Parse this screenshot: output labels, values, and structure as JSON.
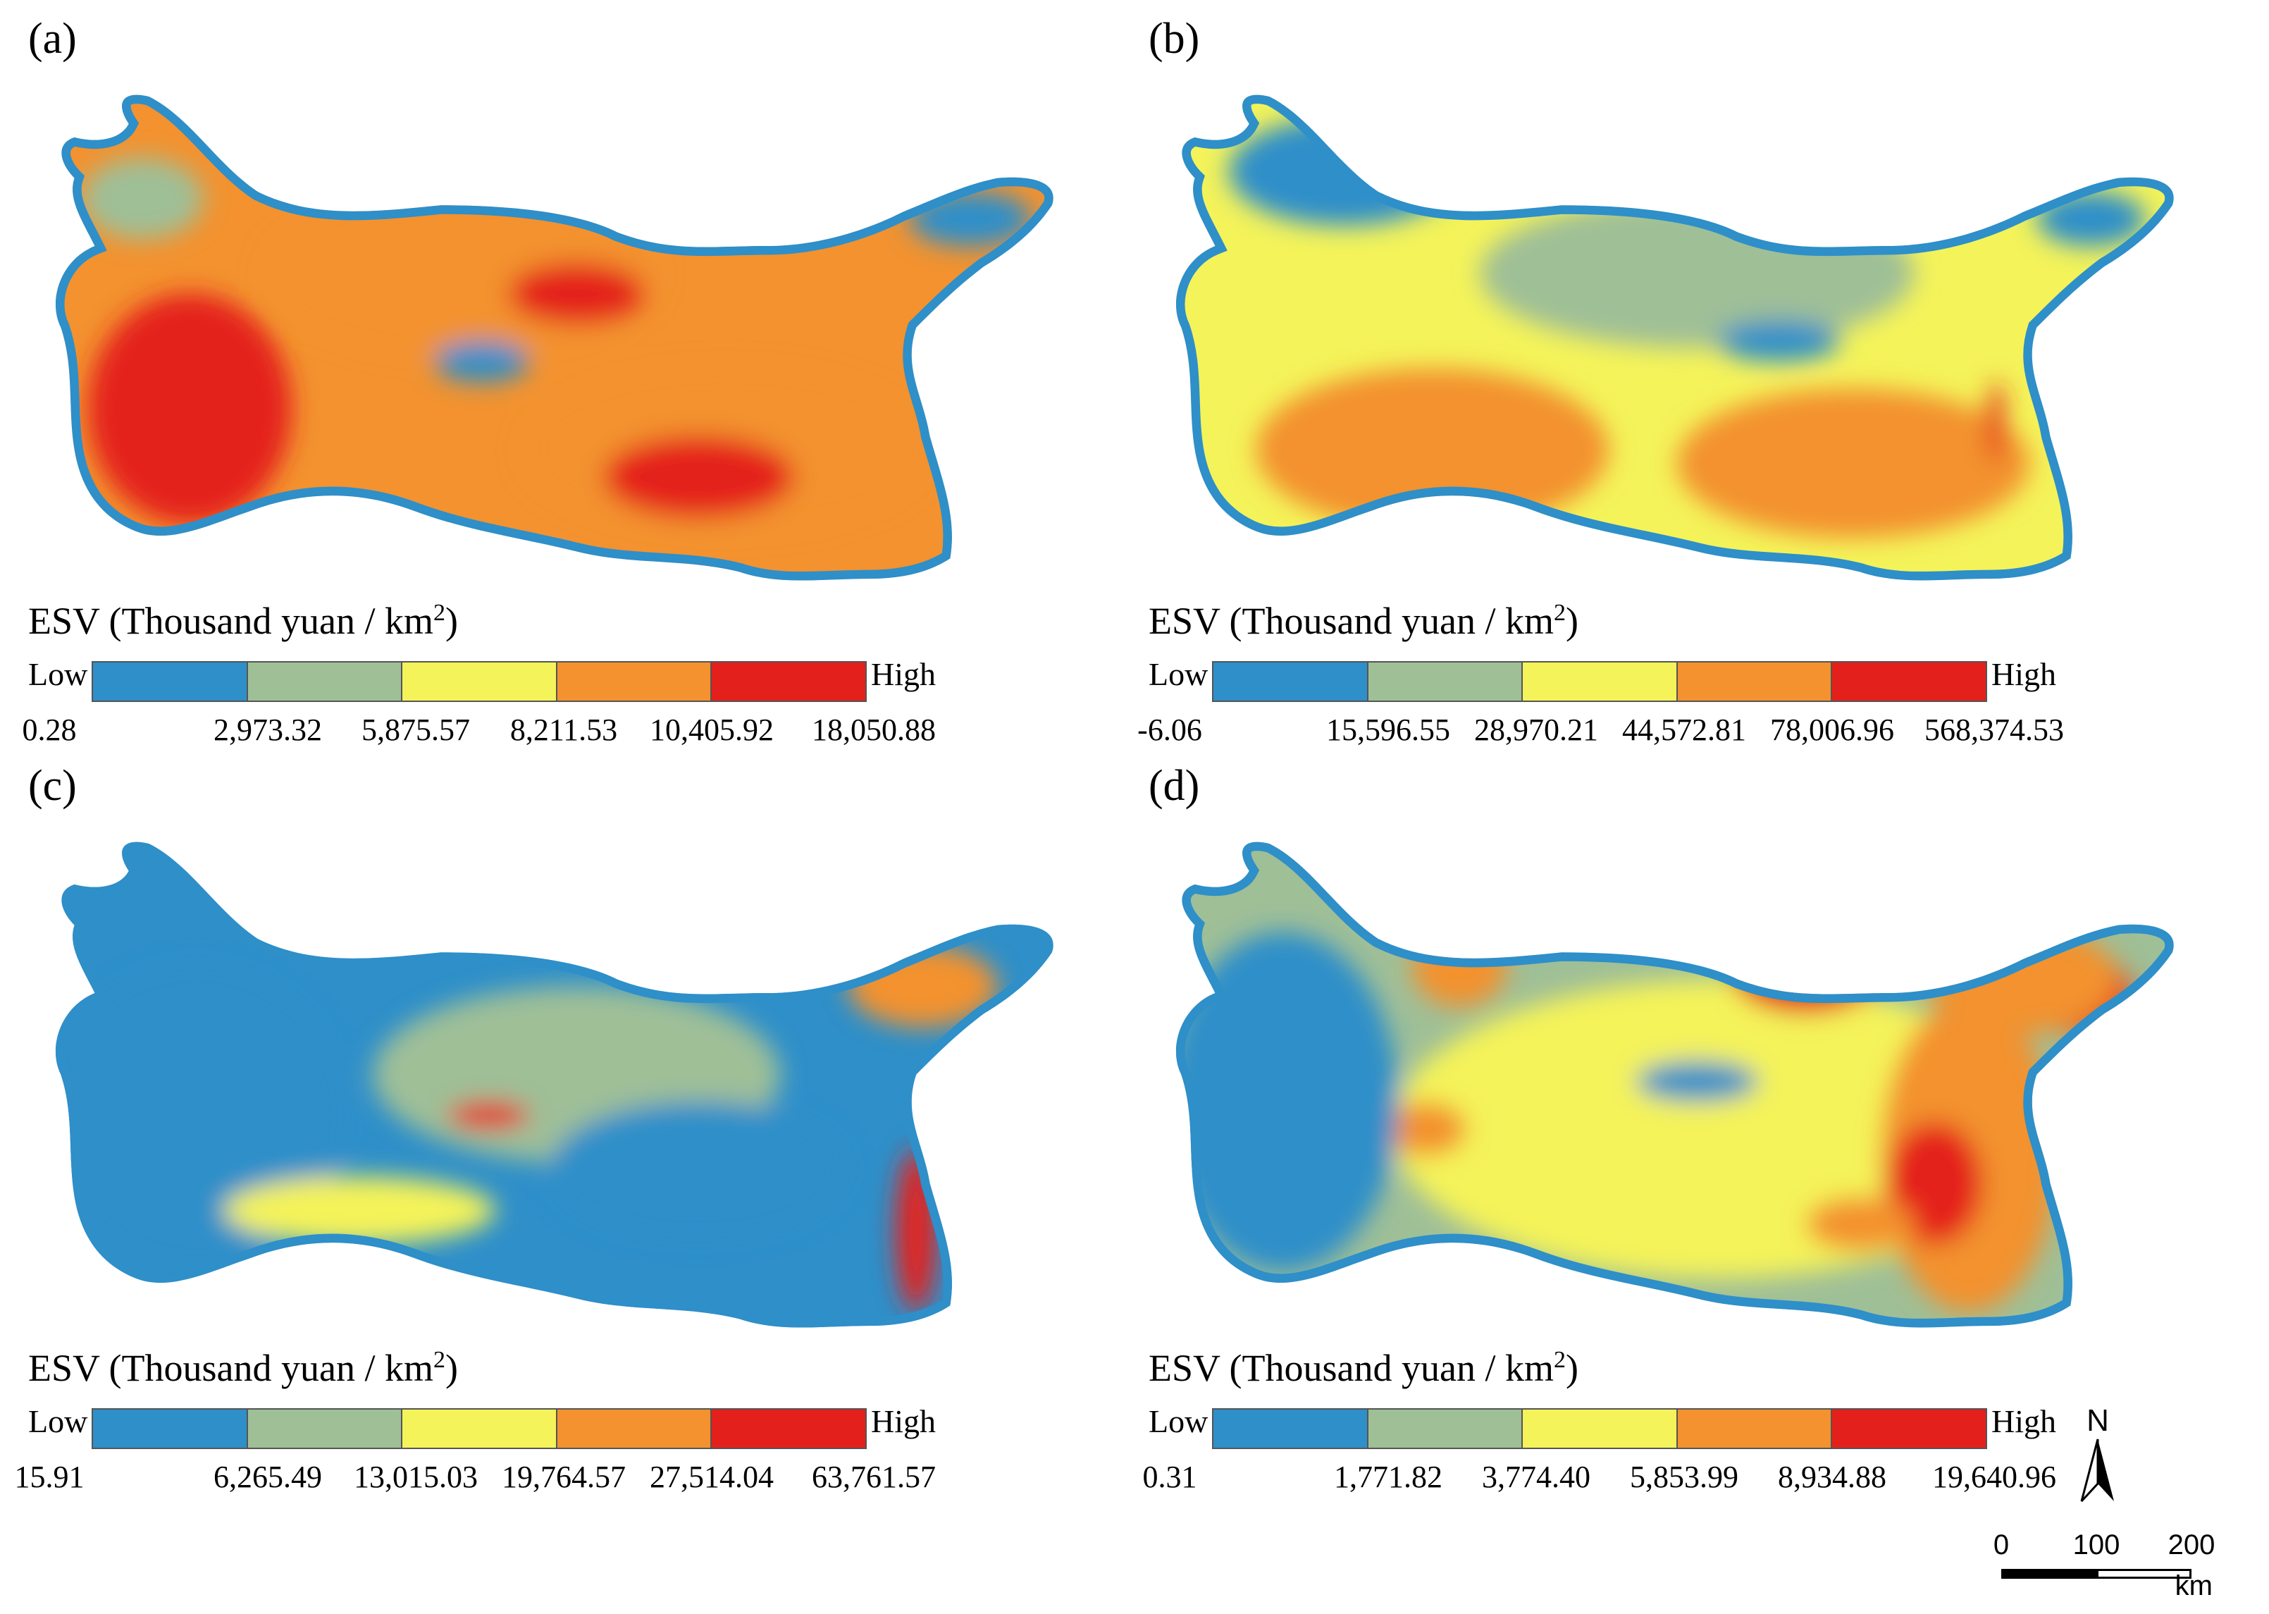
{
  "colors": {
    "class1": "#2e8fc9",
    "class2": "#9fbf97",
    "class3": "#f4f35a",
    "class4": "#f3922f",
    "class5": "#e4201c"
  },
  "panels": [
    {
      "label": "(a)",
      "legend_title": "ESV (Thousand yuan / km",
      "legend_sup": "2",
      "legend_title_end": ")",
      "low": "Low",
      "high": "High",
      "breaks": [
        "0.28",
        "2,973.32",
        "5,875.57",
        "8,211.53",
        "10,405.92",
        "18,050.88"
      ],
      "dominant_classes": [
        "class4",
        "class3",
        "class5",
        "class2",
        "class1"
      ]
    },
    {
      "label": "(b)",
      "legend_title": "ESV (Thousand yuan / km",
      "legend_sup": "2",
      "legend_title_end": ")",
      "low": "Low",
      "high": "High",
      "breaks": [
        "-6.06",
        "15,596.55",
        "28,970.21",
        "44,572.81",
        "78,006.96",
        "568,374.53"
      ],
      "dominant_classes": [
        "class3",
        "class2",
        "class4",
        "class1",
        "class5"
      ]
    },
    {
      "label": "(c)",
      "legend_title": "ESV (Thousand yuan / km",
      "legend_sup": "2",
      "legend_title_end": ")",
      "low": "Low",
      "high": "High",
      "breaks": [
        "15.91",
        "6,265.49",
        "13,015.03",
        "19,764.57",
        "27,514.04",
        "63,761.57"
      ],
      "dominant_classes": [
        "class1",
        "class3",
        "class2",
        "class5",
        "class4"
      ]
    },
    {
      "label": "(d)",
      "legend_title": "ESV (Thousand yuan / km",
      "legend_sup": "2",
      "legend_title_end": ")",
      "low": "Low",
      "high": "High",
      "breaks": [
        "0.31",
        "1,771.82",
        "3,774.40",
        "5,853.99",
        "8,934.88",
        "19,640.96"
      ],
      "dominant_classes": [
        "class2",
        "class1",
        "class3",
        "class4",
        "class5"
      ]
    }
  ],
  "north_arrow": {
    "label": "N"
  },
  "scale_bar": {
    "labels": [
      "0",
      "100",
      "200"
    ],
    "unit": "km"
  }
}
